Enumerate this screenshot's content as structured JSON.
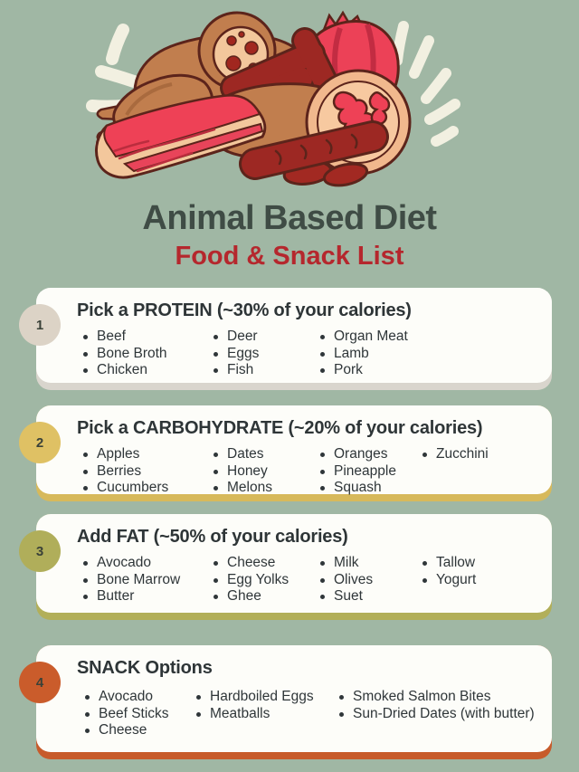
{
  "header": {
    "title": "Animal Based Diet",
    "subtitle": "Food & Snack List"
  },
  "colors": {
    "background": "#a0b7a4",
    "title": "#3f4c45",
    "subtitle": "#b5272d",
    "card_background": "#fdfdf9",
    "body_text": "#2f3639",
    "badge_number": "#3a4138",
    "sparkle": "#f2f0e1"
  },
  "illustration": {
    "alt": "pile-of-meats-illustration: sausages, bacon slab, salami, tied ham, mortadella slice with white sparkle strokes",
    "palette": {
      "tan": "#c17e4e",
      "dark_tan": "#a96a3e",
      "peach": "#f3c79c",
      "pink_red": "#ec4157",
      "dark_red": "#9d2823",
      "outline": "#5c241b"
    }
  },
  "sections": [
    {
      "number": "1",
      "title": "Pick a PROTEIN (~30% of your calories)",
      "badge_color": "#dcd3c6",
      "accent_color": "#d9d5cd",
      "columns": [
        [
          "Beef",
          "Bone Broth",
          "Chicken"
        ],
        [
          "Deer",
          "Eggs",
          "Fish"
        ],
        [
          "Organ Meat",
          "Lamb",
          "Pork"
        ]
      ]
    },
    {
      "number": "2",
      "title": "Pick a CARBOHYDRATE (~20% of your calories)",
      "badge_color": "#dfc164",
      "accent_color": "#d7b95b",
      "columns": [
        [
          "Apples",
          "Berries",
          "Cucumbers"
        ],
        [
          "Dates",
          "Honey",
          "Melons"
        ],
        [
          "Oranges",
          "Pineapple",
          "Squash"
        ],
        [
          "Zucchini"
        ]
      ]
    },
    {
      "number": "3",
      "title": "Add FAT (~50% of your calories)",
      "badge_color": "#b0ae5a",
      "accent_color": "#b2af59",
      "columns": [
        [
          "Avocado",
          "Bone Marrow",
          "Butter"
        ],
        [
          "Cheese",
          "Egg Yolks",
          "Ghee"
        ],
        [
          "Milk",
          "Olives",
          "Suet"
        ],
        [
          "Tallow",
          "Yogurt"
        ]
      ]
    },
    {
      "number": "4",
      "title": "SNACK Options",
      "badge_color": "#ca5c2b",
      "accent_color": "#c75b2b",
      "columns": [
        [
          "Avocado",
          "Beef Sticks",
          "Cheese"
        ],
        [
          "Hardboiled Eggs",
          "Meatballs"
        ],
        [
          "Smoked Salmon Bites",
          "Sun-Dried Dates (with butter)"
        ]
      ]
    }
  ]
}
